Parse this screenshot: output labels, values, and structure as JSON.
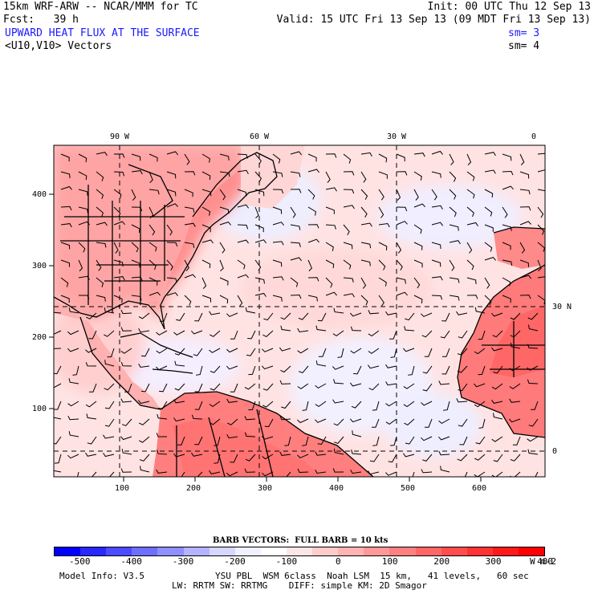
{
  "header": {
    "model": "15km WRF-ARW -- NCAR/MMM for TC",
    "init": "Init: 00 UTC Thu 12 Sep 13",
    "fcst": "Fcst:   39 h",
    "valid": "Valid: 15 UTC Fri 13 Sep 13 (09 MDT Fri 13 Sep 13)",
    "field": "UPWARD HEAT FLUX AT THE SURFACE",
    "field_sm": "sm= 3",
    "vectors": "<U10,V10> Vectors",
    "vectors_sm": "sm= 4"
  },
  "map": {
    "lon_labels": [
      "90 W",
      "60 W",
      "30 W",
      "0"
    ],
    "lat_labels": [
      "30 N",
      "0"
    ],
    "x_ticks": [
      "100",
      "200",
      "300",
      "400",
      "500",
      "600"
    ],
    "y_ticks": [
      "400",
      "300",
      "200",
      "100"
    ],
    "x_range": [
      1,
      689
    ],
    "y_range": [
      1,
      464
    ]
  },
  "legend": {
    "barb_title": "BARB VECTORS:  FULL BARB = 10 kts",
    "labels": [
      "-500",
      "-400",
      "-300",
      "-200",
      "-100",
      "0",
      "100",
      "200",
      "300",
      "400"
    ],
    "unit": "W m-2",
    "colors": [
      "#0000ff",
      "#2828ff",
      "#4b4bff",
      "#6e6eff",
      "#8f8fff",
      "#b3b3ff",
      "#d6d6ff",
      "#f0f0ff",
      "#ffffff",
      "#ffe6e6",
      "#ffcccc",
      "#ffb3b3",
      "#ff9999",
      "#ff8080",
      "#ff6666",
      "#ff4d4d",
      "#ff3333",
      "#ff1a1a",
      "#ff0000"
    ]
  },
  "footer": {
    "model_info": "Model Info: V3.5",
    "physics1": "YSU PBL  WSM 6class  Noah LSM  15 km,   41 levels,   60 sec",
    "physics2": "LW: RRTM SW: RRTMG    DIFF: simple KM: 2D Smagor"
  }
}
